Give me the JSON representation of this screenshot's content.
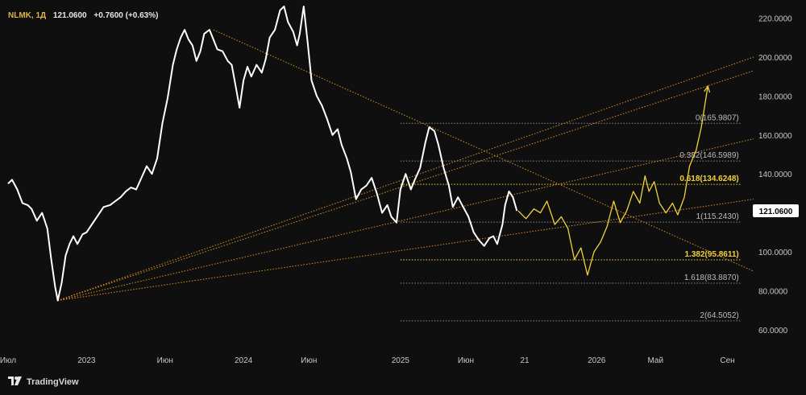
{
  "header": {
    "symbol": "NLMK, 1Д",
    "price": "121.0600",
    "change": "+0.7600 (+0.63%)"
  },
  "brand": {
    "name": "TradingView",
    "icon": "tradingview-logo-icon"
  },
  "colors": {
    "background": "#0f0f0f",
    "price_line": "#ffffff",
    "forecast": "#f2d23a",
    "trendline": "#d9901e",
    "fib_line": "#8a8a8a",
    "fib_highlight": "#f2d23a",
    "last_price_bg": "#ffffff"
  },
  "chart_data": {
    "type": "line",
    "title": "",
    "last_price_label": "121.0600",
    "ylim": [
      50,
      226
    ],
    "y_ticks": [
      {
        "value": 220,
        "label": "220.0000"
      },
      {
        "value": 200,
        "label": "200.0000"
      },
      {
        "value": 180,
        "label": "180.0000"
      },
      {
        "value": 160,
        "label": "160.0000"
      },
      {
        "value": 140,
        "label": "140.0000"
      },
      {
        "value": 120,
        "label": "120.0000"
      },
      {
        "value": 100,
        "label": "100.0000"
      },
      {
        "value": 80,
        "label": "80.0000"
      },
      {
        "value": 60,
        "label": "60.0000"
      }
    ],
    "x_ticks": [
      {
        "t": 0,
        "label": "Июл"
      },
      {
        "t": 6,
        "label": "2023"
      },
      {
        "t": 12,
        "label": "Июн"
      },
      {
        "t": 18,
        "label": "2024"
      },
      {
        "t": 23,
        "label": "Июн"
      },
      {
        "t": 30,
        "label": "2025"
      },
      {
        "t": 35,
        "label": "Июн"
      },
      {
        "t": 39.5,
        "label": "21"
      },
      {
        "t": 45,
        "label": "2026"
      },
      {
        "t": 49.5,
        "label": "Май"
      },
      {
        "t": 55,
        "label": "Сен"
      }
    ],
    "series": [
      {
        "name": "",
        "points": [
          [
            0,
            135
          ],
          [
            0.3,
            137
          ],
          [
            0.7,
            132
          ],
          [
            1.1,
            125
          ],
          [
            1.5,
            124
          ],
          [
            1.8,
            122
          ],
          [
            2.2,
            116
          ],
          [
            2.6,
            120
          ],
          [
            3.0,
            112
          ],
          [
            3.3,
            96
          ],
          [
            3.6,
            82
          ],
          [
            3.8,
            75
          ],
          [
            4.1,
            84
          ],
          [
            4.4,
            98
          ],
          [
            4.7,
            104
          ],
          [
            5.0,
            108
          ],
          [
            5.3,
            104
          ],
          [
            5.7,
            109
          ],
          [
            6.0,
            110
          ],
          [
            6.4,
            114
          ],
          [
            6.8,
            118
          ],
          [
            7.3,
            123
          ],
          [
            7.8,
            124
          ],
          [
            8.2,
            126
          ],
          [
            8.6,
            128
          ],
          [
            9.0,
            131
          ],
          [
            9.4,
            133
          ],
          [
            9.8,
            132
          ],
          [
            10.2,
            138
          ],
          [
            10.6,
            144
          ],
          [
            11.0,
            140
          ],
          [
            11.4,
            148
          ],
          [
            11.8,
            166
          ],
          [
            12.2,
            179
          ],
          [
            12.6,
            196
          ],
          [
            12.9,
            204
          ],
          [
            13.2,
            210
          ],
          [
            13.5,
            214
          ],
          [
            13.8,
            209
          ],
          [
            14.1,
            206
          ],
          [
            14.4,
            198
          ],
          [
            14.7,
            203
          ],
          [
            15.0,
            212
          ],
          [
            15.4,
            214
          ],
          [
            15.7,
            209
          ],
          [
            16.0,
            204
          ],
          [
            16.4,
            203
          ],
          [
            16.8,
            198
          ],
          [
            17.1,
            196
          ],
          [
            17.4,
            185
          ],
          [
            17.7,
            174
          ],
          [
            18.0,
            188
          ],
          [
            18.3,
            195
          ],
          [
            18.6,
            190
          ],
          [
            19.0,
            196
          ],
          [
            19.4,
            192
          ],
          [
            19.7,
            199
          ],
          [
            20.0,
            210
          ],
          [
            20.4,
            214
          ],
          [
            20.8,
            224
          ],
          [
            21.1,
            226
          ],
          [
            21.4,
            218
          ],
          [
            21.8,
            213
          ],
          [
            22.1,
            206
          ],
          [
            22.3,
            212
          ],
          [
            22.6,
            226
          ],
          [
            22.9,
            208
          ],
          [
            23.2,
            188
          ],
          [
            23.6,
            180
          ],
          [
            24.0,
            175
          ],
          [
            24.4,
            168
          ],
          [
            24.8,
            160
          ],
          [
            25.2,
            163
          ],
          [
            25.5,
            155
          ],
          [
            25.9,
            148
          ],
          [
            26.2,
            141
          ],
          [
            26.6,
            127
          ],
          [
            27.0,
            132
          ],
          [
            27.4,
            134
          ],
          [
            27.8,
            138
          ],
          [
            28.2,
            130
          ],
          [
            28.6,
            120
          ],
          [
            29.0,
            124
          ],
          [
            29.3,
            118
          ],
          [
            29.7,
            115
          ],
          [
            30.0,
            132
          ],
          [
            30.4,
            140
          ],
          [
            30.8,
            132
          ],
          [
            31.1,
            137
          ],
          [
            31.5,
            143
          ],
          [
            31.9,
            156
          ],
          [
            32.2,
            164
          ],
          [
            32.6,
            162
          ],
          [
            32.9,
            155
          ],
          [
            33.3,
            143
          ],
          [
            33.7,
            134
          ],
          [
            34.0,
            123
          ],
          [
            34.4,
            128
          ],
          [
            34.8,
            123
          ],
          [
            35.2,
            118
          ],
          [
            35.6,
            110
          ],
          [
            36.0,
            106
          ],
          [
            36.4,
            103
          ],
          [
            36.8,
            107
          ],
          [
            37.1,
            108
          ],
          [
            37.4,
            104
          ],
          [
            37.8,
            114
          ],
          [
            38.0,
            124
          ],
          [
            38.3,
            131
          ],
          [
            38.6,
            128
          ],
          [
            38.9,
            121
          ]
        ]
      },
      {
        "name": "",
        "points": [
          [
            39.0,
            121
          ],
          [
            39.6,
            117
          ],
          [
            40.2,
            122
          ],
          [
            40.7,
            120
          ],
          [
            41.2,
            126
          ],
          [
            41.8,
            114
          ],
          [
            42.3,
            118
          ],
          [
            42.8,
            112
          ],
          [
            43.3,
            96
          ],
          [
            43.8,
            102
          ],
          [
            44.3,
            88
          ],
          [
            44.8,
            100
          ],
          [
            45.3,
            105
          ],
          [
            45.8,
            113
          ],
          [
            46.3,
            126
          ],
          [
            46.8,
            115
          ],
          [
            47.3,
            121
          ],
          [
            47.8,
            131
          ],
          [
            48.3,
            125
          ],
          [
            48.7,
            139
          ],
          [
            49.0,
            131
          ],
          [
            49.4,
            136
          ],
          [
            49.8,
            125
          ],
          [
            50.3,
            120
          ],
          [
            50.8,
            125
          ],
          [
            51.2,
            119
          ],
          [
            51.7,
            128
          ],
          [
            52.1,
            144
          ],
          [
            52.6,
            152
          ],
          [
            53.0,
            164
          ],
          [
            53.5,
            185
          ]
        ]
      }
    ],
    "trendlines": [
      {
        "from": [
          3.8,
          75
        ],
        "to": [
          57,
          200
        ]
      },
      {
        "from": [
          3.8,
          75
        ],
        "to": [
          57,
          193
        ]
      },
      {
        "from": [
          3.8,
          75
        ],
        "to": [
          57,
          158
        ]
      },
      {
        "from": [
          3.8,
          75
        ],
        "to": [
          57,
          127
        ]
      },
      {
        "from": [
          15.7,
          214
        ],
        "to": [
          57,
          90
        ]
      }
    ],
    "fib_levels": [
      {
        "ratio": 0,
        "price": 165.9807,
        "label": "0(165.9807)",
        "highlight": false
      },
      {
        "ratio": 0.382,
        "price": 146.5989,
        "label": "0.382(146.5989)",
        "highlight": false
      },
      {
        "ratio": 0.618,
        "price": 134.6248,
        "label": "0.618(134.6248)",
        "highlight": true
      },
      {
        "ratio": 1,
        "price": 115.243,
        "label": "1(115.2430)",
        "highlight": false
      },
      {
        "ratio": 1.382,
        "price": 95.8611,
        "label": "1.382(95.8611)",
        "highlight": true
      },
      {
        "ratio": 1.618,
        "price": 83.887,
        "label": "1.618(83.8870)",
        "highlight": false
      },
      {
        "ratio": 2,
        "price": 64.5052,
        "label": "2(64.5052)",
        "highlight": false
      }
    ],
    "fib_range": [
      30.0,
      56.0
    ],
    "current_price": 121.06,
    "grid": false,
    "legend": "none"
  }
}
